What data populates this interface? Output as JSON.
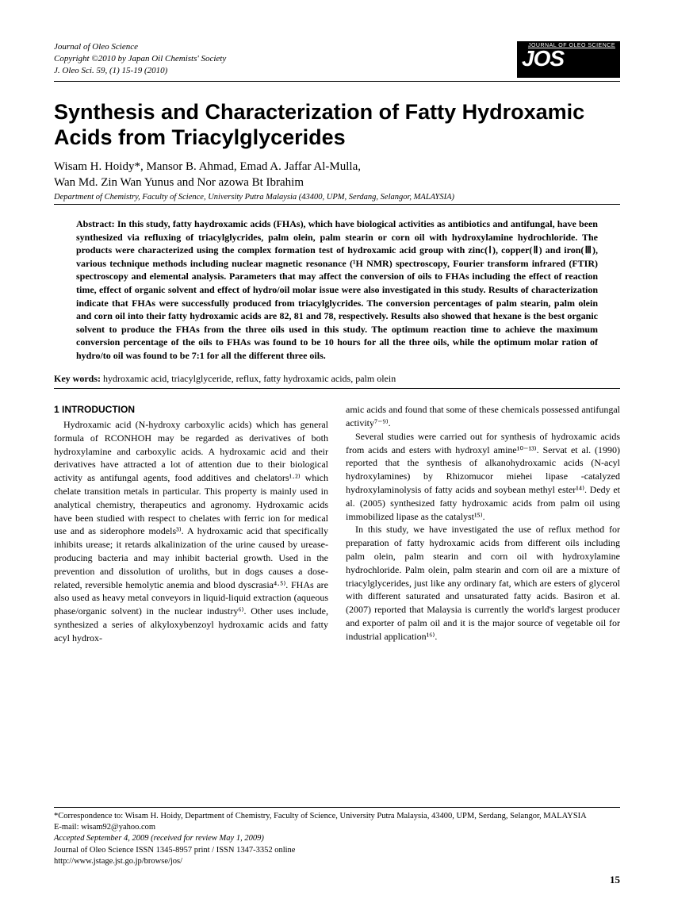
{
  "header": {
    "journal_line1": "Journal of Oleo Science",
    "journal_line2": "Copyright ©2010 by Japan Oil Chemists' Society",
    "journal_line3": "J. Oleo Sci. 59, (1) 15-19 (2010)",
    "logo_small": "JOURNAL OF OLEO SCIENCE",
    "logo_big": "JOS"
  },
  "title": "Synthesis and Characterization of Fatty Hydroxamic Acids from Triacylglycerides",
  "authors_line1": "Wisam H. Hoidy*, Mansor B. Ahmad, Emad A. Jaffar Al-Mulla,",
  "authors_line2": "Wan Md. Zin Wan Yunus and Nor azowa Bt Ibrahim",
  "affiliation": "Department of Chemistry, Faculty of Science, University Putra Malaysia (43400, UPM, Serdang, Selangor, MALAYSIA)",
  "abstract_label": "Abstract: ",
  "abstract_text": "In this study, fatty haydroxamic acids (FHAs), which have biological activities as antibiotics and antifungal, have been synthesized via refluxing of triacylglycrides, palm olein, palm stearin or corn oil with hydroxylamine hydrochloride. The products were characterized using the complex formation test of hydroxamic acid group with zinc(Ⅰ), copper(Ⅱ) and iron(Ⅲ), various technique methods including nuclear magnetic resonance (¹H NMR) spectroscopy, Fourier transform infrared (FTIR) spectroscopy and elemental analysis. Parameters that may affect the conversion of oils to FHAs including the effect of reaction time, effect of organic solvent and effect of hydro/oil molar issue were also investigated in this study. Results of characterization indicate that FHAs were successfully produced from triacylglycrides. The conversion percentages of palm stearin, palm olein and corn oil into their fatty hydroxamic acids are 82, 81 and 78, respectively. Results also showed that hexane is the best organic solvent to produce the FHAs from the three oils used in this study. The optimum reaction time to achieve the maximum conversion percentage of the oils to FHAs was found to be 10 hours for all the three oils, while the optimum molar ration of hydro/to oil was found to be 7:1 for all the different three oils.",
  "keywords_label": "Key words:",
  "keywords_text": " hydroxamic acid, triacylglyceride, reflux, fatty hydroxamic acids, palm olein",
  "section_head": "1   INTRODUCTION",
  "col1_p1": "Hydroxamic acid (N-hydroxy carboxylic acids) which has general formula of RCONHOH may be regarded as derivatives of both hydroxylamine and carboxylic acids. A hydroxamic acid and their derivatives have attracted a lot of attention due to their biological activity as antifungal agents, food additives and chelators¹·²⁾ which chelate transition metals in particular. This property is mainly used in analytical chemistry, therapeutics and agronomy. Hydroxamic acids have been studied with respect to chelates with ferric ion for medical use and as siderophore models³⁾. A hydroxamic acid that specifically inhibits urease; it retards alkalinization of the urine caused by urease-producing bacteria and may inhibit bacterial growth. Used in the prevention and dissolution of uroliths, but in dogs causes a dose-related, reversible hemolytic anemia and blood dyscrasia⁴·⁵⁾. FHAs are also used as heavy metal conveyors in liquid-liquid extraction (aqueous phase/organic solvent) in the nuclear industry⁶⁾. Other uses include, synthesized a series of alkyloxybenzoyl hydroxamic acids and fatty acyl hydrox-",
  "col2_p1": "amic acids and found that some of these chemicals possessed antifungal activity⁷⁻⁹⁾.",
  "col2_p2": "Several studies were carried out for synthesis of hydroxamic acids from acids and esters with hydroxyl amine¹⁰⁻¹³⁾. Servat et al. (1990) reported that the synthesis of alkanohydroxamic acids (N-acyl hydroxylamines) by Rhizomucor miehei lipase -catalyzed hydroxylaminolysis of fatty acids and soybean methyl ester¹⁴⁾. Dedy et al. (2005) synthesized fatty hydroxamic acids from palm oil using immobilized lipase as the catalyst¹⁵⁾.",
  "col2_p3": "In this study, we have investigated the use of reflux method for preparation of fatty hydroxamic acids from different oils including palm olein, palm stearin and corn oil with hydroxylamine hydrochloride. Palm olein, palm stearin and corn oil are a mixture of triacylglycerides, just like any ordinary fat, which are esters of glycerol with different saturated and unsaturated fatty acids. Basiron et al. (2007) reported that Malaysia is currently the world's largest producer and exporter of palm oil and it is the major source of vegetable oil for industrial application¹⁶⁾.",
  "footer": {
    "corr": "*Correspondence to: Wisam H. Hoidy, Department of Chemistry, Faculty of Science, University Putra Malaysia, 43400, UPM, Serdang, Selangor, MALAYSIA",
    "email": "E-mail: wisam92@yahoo.com",
    "accepted": "Accepted September 4, 2009 (received for review May 1, 2009)",
    "issn": "Journal of Oleo Science ISSN 1345-8957 print / ISSN 1347-3352 online",
    "url": "http://www.jstage.jst.go.jp/browse/jos/"
  },
  "page_number": "15"
}
